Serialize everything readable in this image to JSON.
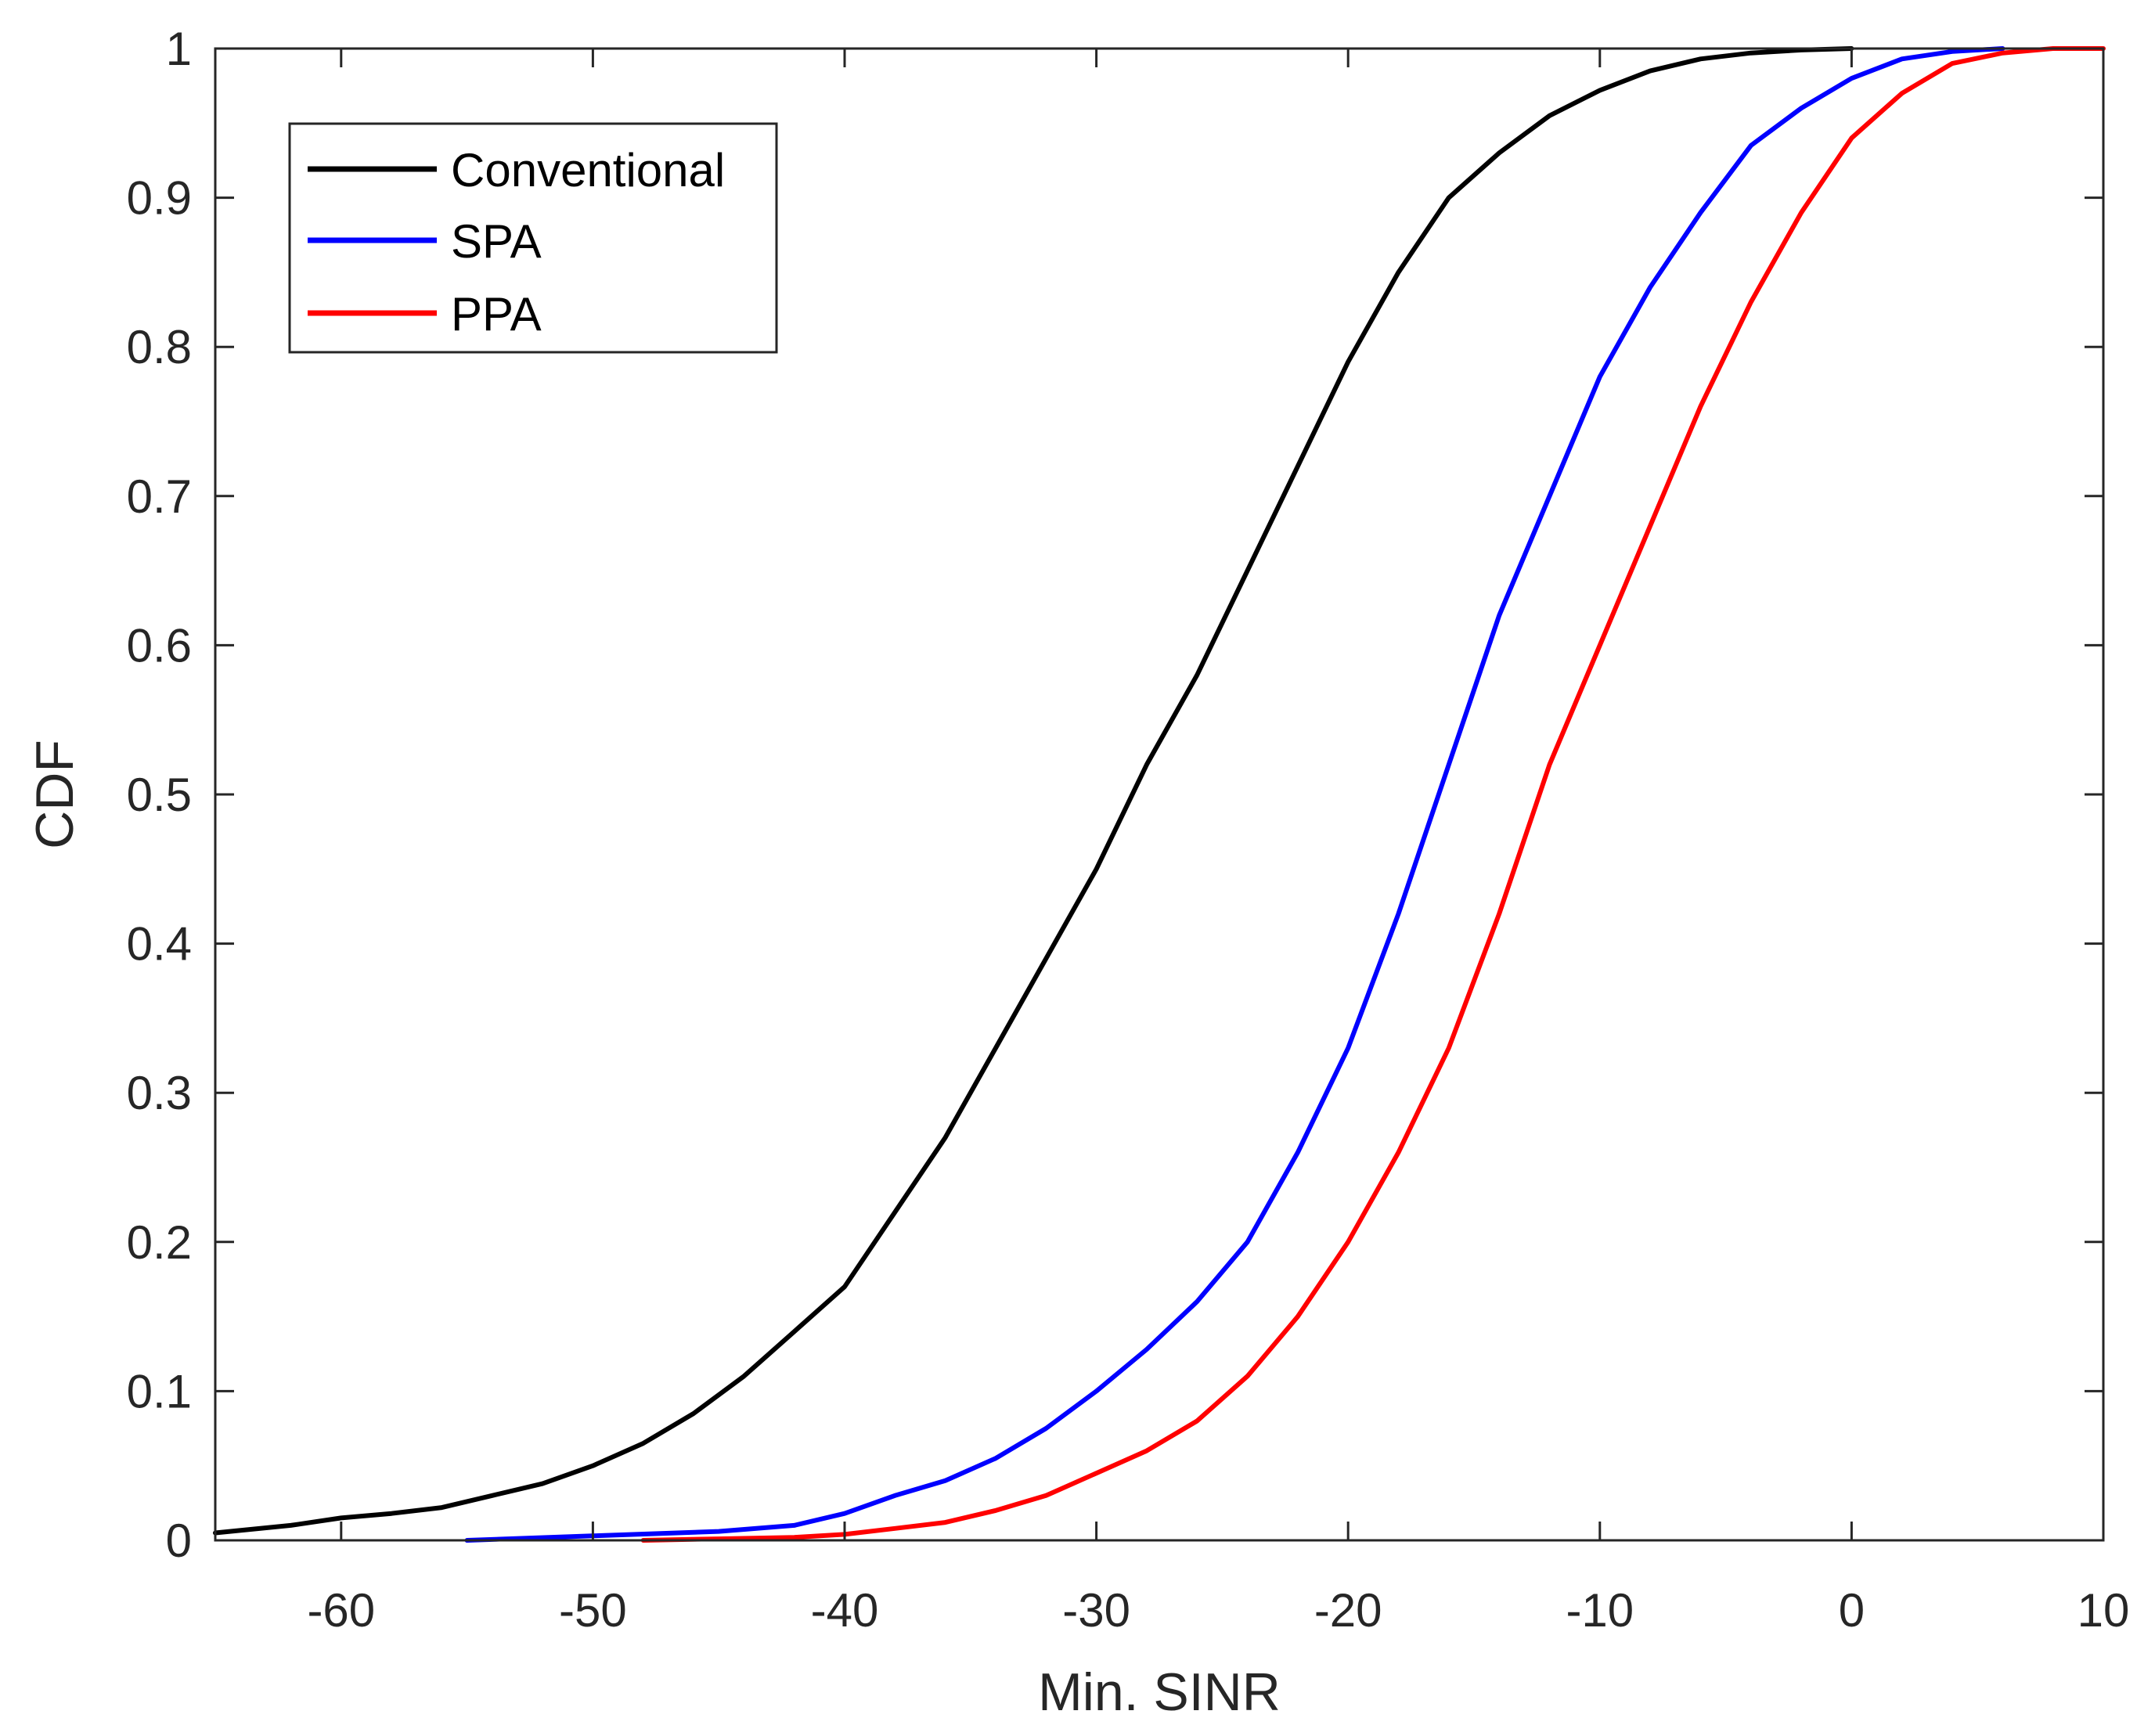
{
  "chart_data": {
    "type": "line",
    "title": "",
    "xlabel": "Min. SINR",
    "ylabel": "CDF",
    "xlim": [
      -65,
      10
    ],
    "ylim": [
      0,
      1
    ],
    "xticks": [
      -60,
      -50,
      -40,
      -30,
      -20,
      -10,
      0,
      10
    ],
    "xtick_labels": [
      "-60",
      "-50",
      "-40",
      "-30",
      "-20",
      "-10",
      "0",
      "10"
    ],
    "yticks": [
      0,
      0.1,
      0.2,
      0.3,
      0.4,
      0.5,
      0.6,
      0.7,
      0.8,
      0.9,
      1
    ],
    "ytick_labels": [
      "0",
      "0.1",
      "0.2",
      "0.3",
      "0.4",
      "0.5",
      "0.6",
      "0.7",
      "0.8",
      "0.9",
      "1"
    ],
    "grid": false,
    "legend_position": "top-left",
    "series": [
      {
        "name": "Conventional",
        "color": "#000000",
        "x": [
          -65,
          -62,
          -60,
          -58,
          -56,
          -54,
          -52,
          -50,
          -48,
          -46,
          -44,
          -42,
          -40,
          -38,
          -36,
          -34,
          -32,
          -30,
          -28,
          -26,
          -24,
          -22,
          -20,
          -18,
          -16,
          -14,
          -12,
          -10,
          -8,
          -6,
          -4,
          -2,
          0
        ],
        "y": [
          0.005,
          0.01,
          0.015,
          0.018,
          0.022,
          0.03,
          0.038,
          0.05,
          0.065,
          0.085,
          0.11,
          0.14,
          0.17,
          0.22,
          0.27,
          0.33,
          0.39,
          0.45,
          0.52,
          0.58,
          0.65,
          0.72,
          0.79,
          0.85,
          0.9,
          0.93,
          0.955,
          0.972,
          0.985,
          0.993,
          0.997,
          0.999,
          1.0
        ]
      },
      {
        "name": "SPA",
        "color": "#0000ff",
        "x": [
          -55,
          -50,
          -45,
          -42,
          -40,
          -38,
          -36,
          -34,
          -32,
          -30,
          -28,
          -26,
          -24,
          -22,
          -20,
          -18,
          -16,
          -14,
          -12,
          -10,
          -8,
          -6,
          -4,
          -2,
          0,
          2,
          4,
          6
        ],
        "y": [
          0.0,
          0.003,
          0.006,
          0.01,
          0.018,
          0.03,
          0.04,
          0.055,
          0.075,
          0.1,
          0.128,
          0.16,
          0.2,
          0.26,
          0.33,
          0.42,
          0.52,
          0.62,
          0.7,
          0.78,
          0.84,
          0.89,
          0.935,
          0.96,
          0.98,
          0.993,
          0.998,
          1.0
        ]
      },
      {
        "name": "PPA",
        "color": "#ff0000",
        "x": [
          -48,
          -45,
          -42,
          -40,
          -38,
          -36,
          -34,
          -32,
          -30,
          -28,
          -26,
          -24,
          -22,
          -20,
          -18,
          -16,
          -14,
          -12,
          -10,
          -8,
          -6,
          -4,
          -2,
          0,
          2,
          4,
          6,
          8,
          10
        ],
        "y": [
          0.0,
          0.001,
          0.002,
          0.004,
          0.008,
          0.012,
          0.02,
          0.03,
          0.045,
          0.06,
          0.08,
          0.11,
          0.15,
          0.2,
          0.26,
          0.33,
          0.42,
          0.52,
          0.6,
          0.68,
          0.76,
          0.83,
          0.89,
          0.94,
          0.97,
          0.99,
          0.997,
          1.0,
          1.0
        ]
      }
    ]
  }
}
